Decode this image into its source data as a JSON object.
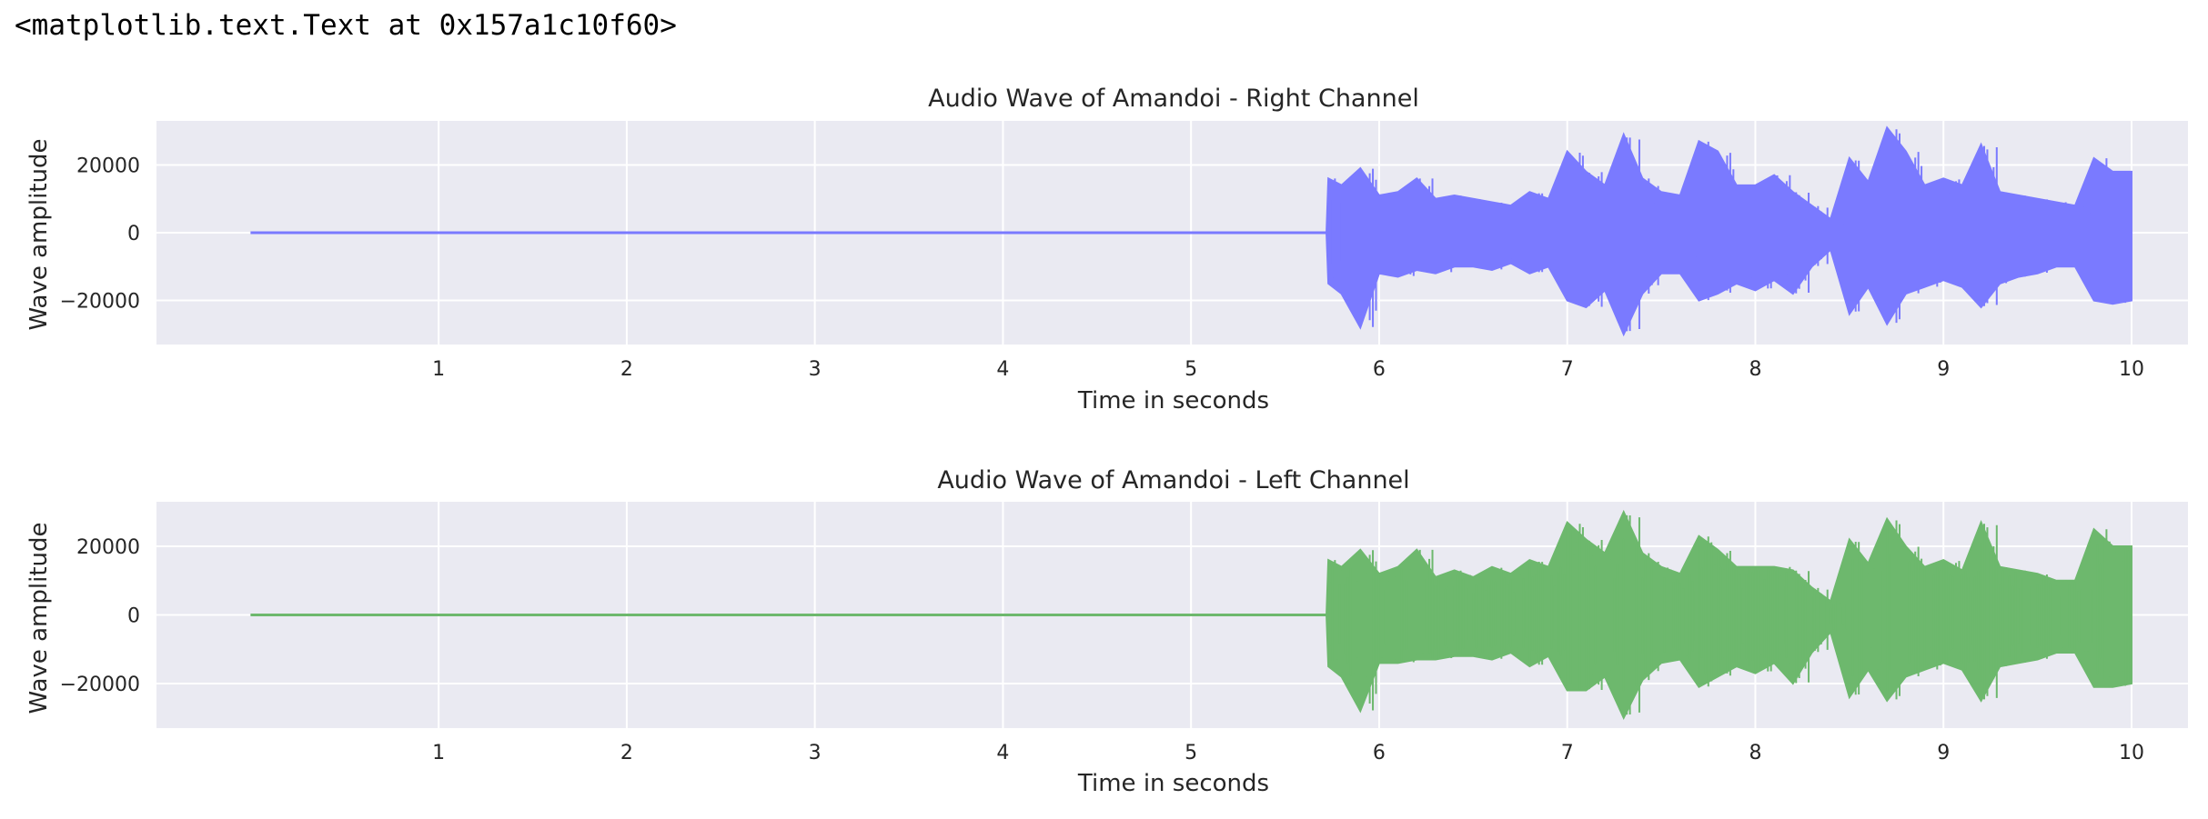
{
  "output_text": "<matplotlib.text.Text at 0x157a1c10f60>",
  "chart_data": [
    {
      "type": "line",
      "title": "Audio Wave of Amandoi - Right Channel",
      "xlabel": "Time in seconds",
      "ylabel": "Wave amplitude",
      "x_ticks": [
        "1",
        "2",
        "3",
        "4",
        "5",
        "6",
        "7",
        "8",
        "9",
        "10"
      ],
      "y_ticks": [
        "20000",
        "0",
        "-20000"
      ],
      "xlim": [
        -0.5,
        10.3
      ],
      "ylim": [
        -33000,
        33000
      ],
      "grid": true,
      "color": "#7a7aff",
      "series": [
        {
          "x": [
            0,
            5.72,
            5.73,
            5.8,
            5.9,
            6.0,
            6.1,
            6.2,
            6.3,
            6.4,
            6.5,
            6.6,
            6.7,
            6.8,
            6.9,
            7.0,
            7.1,
            7.2,
            7.3,
            7.4,
            7.5,
            7.6,
            7.7,
            7.8,
            7.9,
            8.0,
            8.1,
            8.2,
            8.3,
            8.4,
            8.5,
            8.6,
            8.7,
            8.8,
            8.9,
            9.0,
            9.1,
            9.2,
            9.3,
            9.4,
            9.5,
            9.6,
            9.7,
            9.8,
            9.9,
            10.0
          ],
          "upper": [
            0,
            0,
            16000,
            14000,
            19000,
            11000,
            12000,
            16000,
            10000,
            11000,
            10000,
            9000,
            8000,
            12000,
            10000,
            24000,
            18000,
            14000,
            29000,
            16000,
            12000,
            11000,
            27000,
            24000,
            14000,
            14000,
            17000,
            12000,
            8000,
            4000,
            22000,
            15000,
            31000,
            24000,
            14000,
            16000,
            14000,
            26000,
            12000,
            11000,
            10000,
            9000,
            8000,
            22000,
            18000,
            18000
          ],
          "lower": [
            0,
            0,
            -15000,
            -18000,
            -28000,
            -12000,
            -13000,
            -11000,
            -12000,
            -10000,
            -10000,
            -11000,
            -9000,
            -12000,
            -10000,
            -20000,
            -22000,
            -17000,
            -30000,
            -18000,
            -12000,
            -12000,
            -20000,
            -18000,
            -15000,
            -17000,
            -14000,
            -18000,
            -10000,
            -5000,
            -24000,
            -16000,
            -27000,
            -18000,
            -16000,
            -14000,
            -16000,
            -22000,
            -15000,
            -13000,
            -12000,
            -10000,
            -10000,
            -20000,
            -21000,
            -20000
          ]
        }
      ]
    },
    {
      "type": "line",
      "title": "Audio Wave of Amandoi - Left Channel",
      "xlabel": "Time in seconds",
      "ylabel": "Wave amplitude",
      "x_ticks": [
        "1",
        "2",
        "3",
        "4",
        "5",
        "6",
        "7",
        "8",
        "9",
        "10"
      ],
      "y_ticks": [
        "20000",
        "0",
        "-20000"
      ],
      "xlim": [
        -0.5,
        10.3
      ],
      "ylim": [
        -33000,
        33000
      ],
      "grid": true,
      "color": "#6db86d",
      "series": [
        {
          "x": [
            0,
            5.72,
            5.73,
            5.8,
            5.9,
            6.0,
            6.1,
            6.2,
            6.3,
            6.4,
            6.5,
            6.6,
            6.7,
            6.8,
            6.9,
            7.0,
            7.1,
            7.2,
            7.3,
            7.4,
            7.5,
            7.6,
            7.7,
            7.8,
            7.9,
            8.0,
            8.1,
            8.2,
            8.3,
            8.4,
            8.5,
            8.6,
            8.7,
            8.8,
            8.9,
            9.0,
            9.1,
            9.2,
            9.3,
            9.4,
            9.5,
            9.6,
            9.7,
            9.8,
            9.9,
            10.0
          ],
          "upper": [
            0,
            0,
            16000,
            14000,
            19000,
            12000,
            14000,
            19000,
            11000,
            13000,
            11000,
            14000,
            12000,
            16000,
            14000,
            27000,
            22000,
            18000,
            30000,
            18000,
            14000,
            12000,
            23000,
            19000,
            14000,
            14000,
            14000,
            13000,
            8000,
            4000,
            22000,
            15000,
            28000,
            20000,
            14000,
            16000,
            13000,
            27000,
            14000,
            13000,
            12000,
            10000,
            10000,
            25000,
            20000,
            20000
          ],
          "lower": [
            0,
            0,
            -15000,
            -18000,
            -28000,
            -14000,
            -14000,
            -13000,
            -13000,
            -12000,
            -12000,
            -13000,
            -11000,
            -15000,
            -12000,
            -22000,
            -22000,
            -18000,
            -30000,
            -19000,
            -14000,
            -13000,
            -21000,
            -18000,
            -15000,
            -17000,
            -14000,
            -20000,
            -11000,
            -5000,
            -24000,
            -16000,
            -25000,
            -18000,
            -16000,
            -14000,
            -16000,
            -25000,
            -15000,
            -14000,
            -13000,
            -11000,
            -11000,
            -21000,
            -21000,
            -20000
          ]
        }
      ]
    }
  ]
}
